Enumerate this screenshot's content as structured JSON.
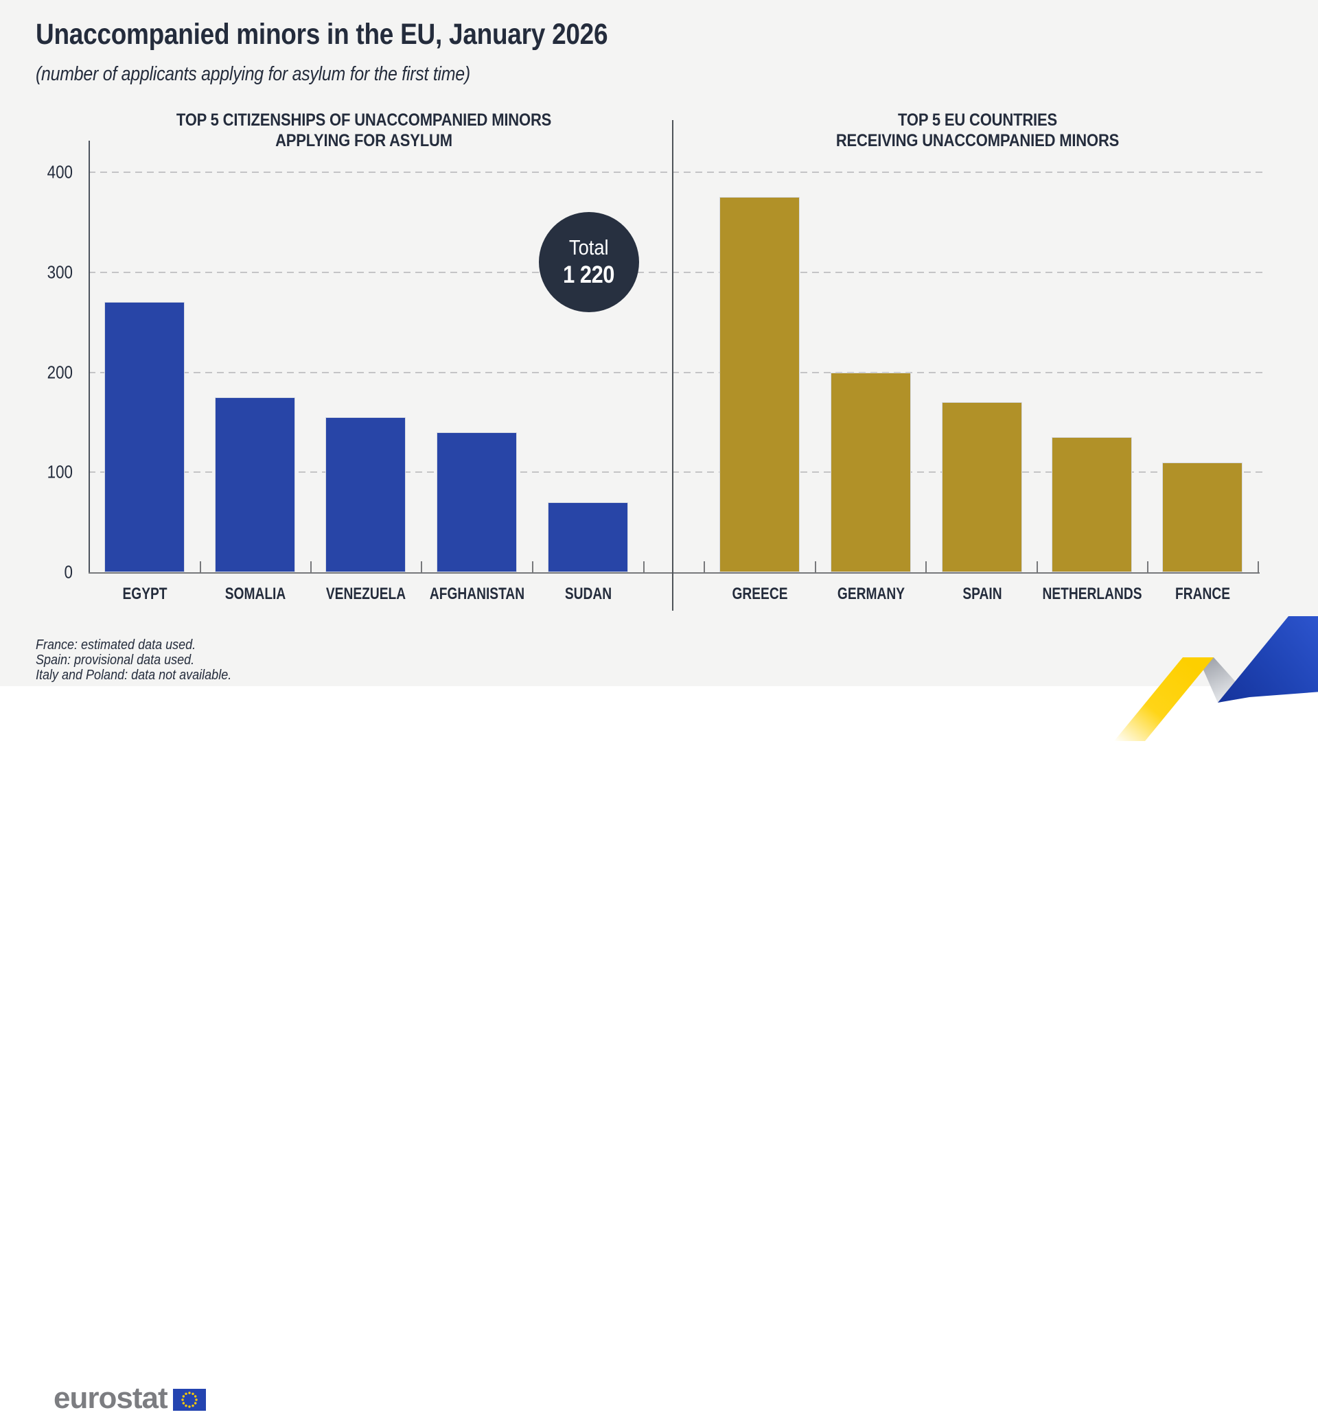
{
  "header": {
    "title": "Unaccompanied minors in the EU, January 2026",
    "subtitle": "(number of applicants applying for asylum for the first time)"
  },
  "total_badge": {
    "label": "Total",
    "value": "1 220"
  },
  "footnotes": [
    "France: estimated data used.",
    "Spain: provisional data used.",
    "Italy and Poland: data not available."
  ],
  "logo": {
    "text": "eurostat"
  },
  "colors": {
    "background": "#f4f4f3",
    "ink_navy": "#242c3c",
    "badge_navy": "#273040",
    "left_bar_blue": "#2845a7",
    "right_bar_gold": "#b19128",
    "gridline_gray": "#c4c4c6",
    "logo_gray": "#7c7d81",
    "ribbon_yellow": "#ffd517",
    "ribbon_blue": "#2d55cf",
    "eu_flag_blue": "#2444b0",
    "eu_star_yellow": "#ffcc00"
  },
  "chart_data": [
    {
      "type": "bar",
      "title": "TOP 5 CITIZENSHIPS OF UNACCOMPANIED MINORS APPLYING FOR ASYLUM",
      "title_lines": [
        "TOP 5 CITIZENSHIPS OF UNACCOMPANIED MINORS",
        "APPLYING FOR ASYLUM"
      ],
      "categories": [
        "EGYPT",
        "SOMALIA",
        "VENEZUELA",
        "AFGHANISTAN",
        "SUDAN"
      ],
      "values": [
        270,
        175,
        155,
        140,
        70
      ],
      "bar_color": "#2845a7",
      "xlabel": "",
      "ylabel": "",
      "ylim": [
        0,
        400
      ],
      "y_ticks": [
        0,
        100,
        200,
        300,
        400
      ],
      "grid": "horizontal-dashed",
      "legend": "none"
    },
    {
      "type": "bar",
      "title": "TOP 5 EU COUNTRIES RECEIVING UNACCOMPANIED MINORS",
      "title_lines": [
        "TOP 5 EU COUNTRIES",
        "RECEIVING UNACCOMPANIED MINORS"
      ],
      "categories": [
        "GREECE",
        "GERMANY",
        "SPAIN",
        "NETHERLANDS",
        "FRANCE"
      ],
      "values": [
        375,
        200,
        170,
        135,
        110
      ],
      "bar_color": "#b19128",
      "xlabel": "",
      "ylabel": "",
      "ylim": [
        0,
        400
      ],
      "y_ticks": [
        0,
        100,
        200,
        300,
        400
      ],
      "grid": "horizontal-dashed",
      "legend": "none"
    }
  ]
}
